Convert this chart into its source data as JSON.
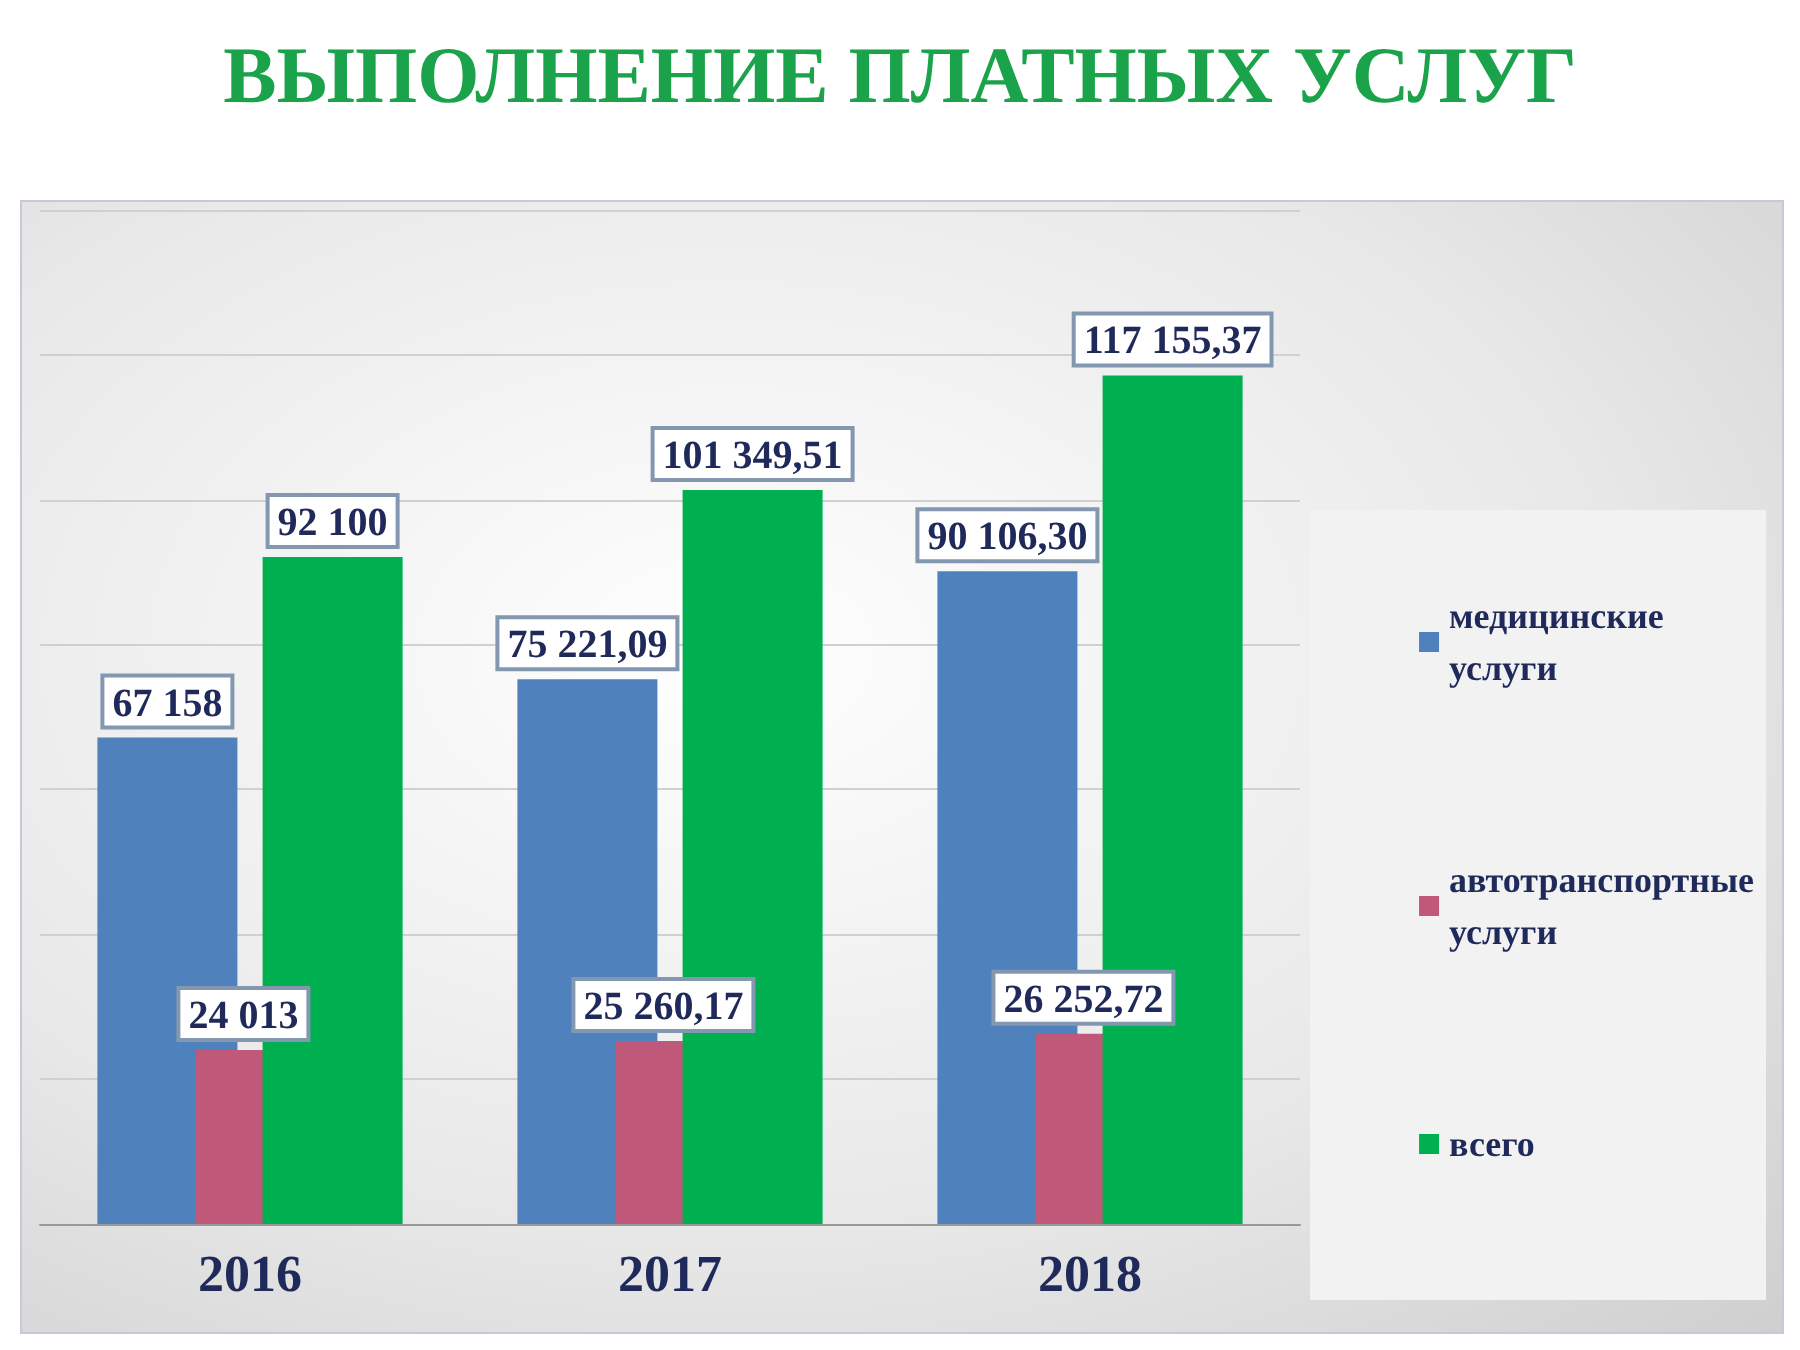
{
  "chart_data": {
    "type": "bar",
    "title": "ВЫПОЛНЕНИЕ ПЛАТНЫХ УСЛУГ",
    "categories": [
      "2016",
      "2017",
      "2018"
    ],
    "series": [
      {
        "name": "медицинские услуги",
        "color": "#4f81bd",
        "values": [
          67158,
          75221.09,
          90106.3
        ],
        "value_labels": [
          "67 158",
          "75 221,09",
          "90 106,30"
        ]
      },
      {
        "name": "автотранспортные услуги",
        "color": "#c0587a",
        "values": [
          24013,
          25260.17,
          26252.72
        ],
        "value_labels": [
          "24 013",
          "25 260,17",
          "26 252,72"
        ]
      },
      {
        "name": "всего",
        "color": "#00b050",
        "values": [
          92100,
          101349.51,
          117155.37
        ],
        "value_labels": [
          "92 100",
          "101 349,51",
          "117 155,37"
        ]
      }
    ],
    "ylim": [
      0,
      140000
    ],
    "yticks": [
      {
        "value": 0,
        "label": null
      },
      {
        "value": 20000,
        "label": null
      },
      {
        "value": 40000,
        "label": null
      },
      {
        "value": 60000,
        "label": null
      },
      {
        "value": 80000,
        "label": null
      },
      {
        "value": 100000,
        "label": null
      },
      {
        "value": 120000,
        "label": null
      },
      {
        "value": 140000,
        "label": null
      }
    ],
    "tick_labels": "x",
    "grid": "y",
    "legend": "right"
  }
}
